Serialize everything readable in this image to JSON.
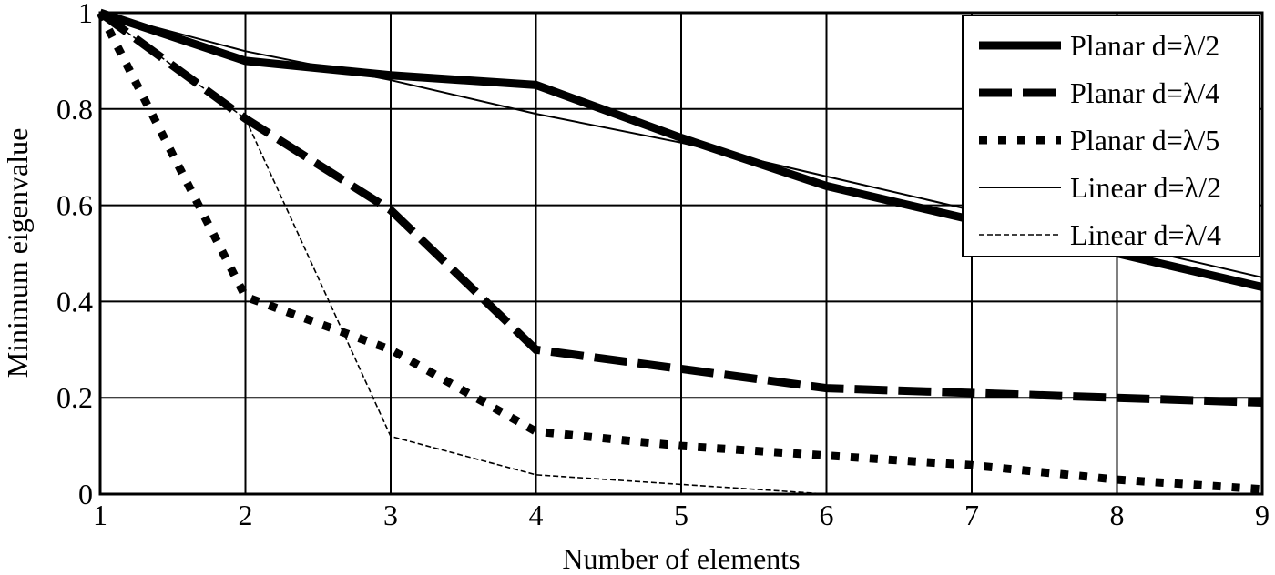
{
  "chart_data": {
    "type": "line",
    "title": "",
    "xlabel": "Number of elements",
    "ylabel": "Minimum eigenvalue",
    "x": [
      1,
      2,
      3,
      4,
      5,
      6,
      7,
      8,
      9
    ],
    "xlim": [
      1,
      9
    ],
    "ylim": [
      0,
      1
    ],
    "xticks": [
      "1",
      "2",
      "3",
      "4",
      "5",
      "6",
      "7",
      "8",
      "9"
    ],
    "yticks": [
      "0",
      "0.2",
      "0.4",
      "0.6",
      "0.8",
      "1"
    ],
    "grid": true,
    "legend_position": "upper right",
    "series": [
      {
        "name": "Planar d=λ/2",
        "style": "thick-solid",
        "values": [
          1.0,
          0.9,
          0.87,
          0.85,
          0.74,
          0.64,
          0.57,
          0.5,
          0.43
        ]
      },
      {
        "name": "Planar d=λ/4",
        "style": "thick-dashed",
        "values": [
          1.0,
          0.78,
          0.59,
          0.3,
          0.26,
          0.22,
          0.21,
          0.2,
          0.19
        ]
      },
      {
        "name": "Planar d=λ/5",
        "style": "thick-dotted",
        "values": [
          1.0,
          0.41,
          0.3,
          0.13,
          0.1,
          0.08,
          0.06,
          0.03,
          0.01
        ]
      },
      {
        "name": "Linear d=λ/2",
        "style": "thin-solid",
        "values": [
          1.0,
          0.92,
          0.86,
          0.79,
          0.73,
          0.66,
          0.59,
          0.52,
          0.45
        ]
      },
      {
        "name": "Linear d=λ/4",
        "style": "thin-dashed",
        "values": [
          1.0,
          0.78,
          0.12,
          0.04,
          0.02,
          0.0,
          0.0,
          0.0,
          0.0
        ]
      }
    ]
  }
}
